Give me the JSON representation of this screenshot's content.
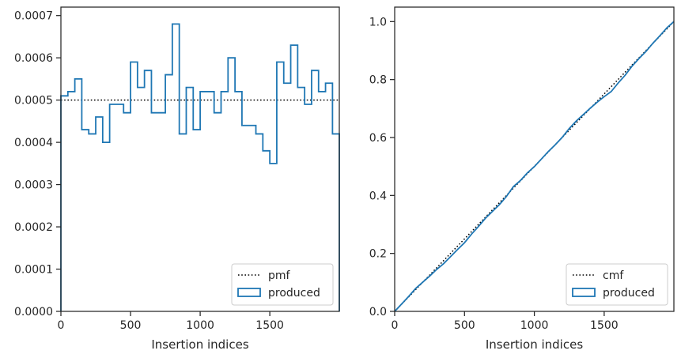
{
  "chart_data": [
    {
      "type": "step",
      "xlabel": "Insertion indices",
      "ylabel": "",
      "xlim": [
        0,
        1999
      ],
      "ylim": [
        0,
        0.00072
      ],
      "xticks": [
        0,
        500,
        1000,
        1500
      ],
      "xtick_labels": [
        "0",
        "500",
        "1000",
        "1500"
      ],
      "yticks": [
        0,
        0.0001,
        0.0002,
        0.0003,
        0.0004,
        0.0005,
        0.0006,
        0.0007
      ],
      "ytick_labels": [
        "0.0000",
        "0.0001",
        "0.0002",
        "0.0003",
        "0.0004",
        "0.0005",
        "0.0006",
        "0.0007"
      ],
      "legend_position": "bottom-right",
      "series": [
        {
          "name": "pmf",
          "style": "dotted",
          "color": "#000000",
          "x": [
            0,
            1999
          ],
          "y": [
            0.0005,
            0.0005
          ]
        },
        {
          "name": "produced",
          "style": "step",
          "color": "#1f77b4",
          "bin_width": 50,
          "x_start": 0,
          "values": [
            0.00051,
            0.00052,
            0.00055,
            0.00043,
            0.00042,
            0.00046,
            0.0004,
            0.00049,
            0.00049,
            0.00047,
            0.00059,
            0.00053,
            0.00057,
            0.00047,
            0.00047,
            0.00056,
            0.00068,
            0.00042,
            0.00053,
            0.00043,
            0.00052,
            0.00052,
            0.00047,
            0.00052,
            0.0006,
            0.00052,
            0.00044,
            0.00044,
            0.00042,
            0.00038,
            0.00035,
            0.00059,
            0.00054,
            0.00063,
            0.00053,
            0.00049,
            0.00057,
            0.00052,
            0.00054,
            0.00042
          ]
        }
      ],
      "legend": [
        {
          "label": "pmf",
          "marker": "dotted-line"
        },
        {
          "label": "produced",
          "marker": "rect"
        }
      ]
    },
    {
      "type": "line",
      "xlabel": "Insertion indices",
      "ylabel": "",
      "xlim": [
        0,
        1999
      ],
      "ylim": [
        0,
        1.05
      ],
      "xticks": [
        0,
        500,
        1000,
        1500
      ],
      "xtick_labels": [
        "0",
        "500",
        "1000",
        "1500"
      ],
      "yticks": [
        0,
        0.2,
        0.4,
        0.6,
        0.8,
        1.0
      ],
      "ytick_labels": [
        "0.0",
        "0.2",
        "0.4",
        "0.6",
        "0.8",
        "1.0"
      ],
      "legend_position": "bottom-right",
      "series": [
        {
          "name": "cmf",
          "style": "dotted",
          "color": "#000000",
          "x": [
            0,
            1999
          ],
          "y": [
            0,
            1.0
          ]
        },
        {
          "name": "produced",
          "style": "solid",
          "color": "#1f77b4",
          "x": [
            0,
            50,
            100,
            150,
            200,
            250,
            300,
            350,
            400,
            450,
            500,
            550,
            600,
            650,
            700,
            750,
            800,
            850,
            900,
            950,
            1000,
            1050,
            1100,
            1150,
            1200,
            1250,
            1300,
            1350,
            1400,
            1450,
            1500,
            1550,
            1600,
            1650,
            1700,
            1750,
            1800,
            1850,
            1900,
            1950,
            1999
          ],
          "y": [
            0,
            0.0255,
            0.0515,
            0.079,
            0.1005,
            0.1215,
            0.1445,
            0.1645,
            0.189,
            0.2135,
            0.237,
            0.2665,
            0.293,
            0.3215,
            0.345,
            0.3685,
            0.3965,
            0.4305,
            0.4515,
            0.478,
            0.4995,
            0.5255,
            0.5515,
            0.575,
            0.601,
            0.631,
            0.657,
            0.679,
            0.701,
            0.722,
            0.741,
            0.7585,
            0.788,
            0.815,
            0.8465,
            0.873,
            0.8975,
            0.926,
            0.952,
            0.979,
            1.0
          ]
        }
      ],
      "legend": [
        {
          "label": "cmf",
          "marker": "dotted-line"
        },
        {
          "label": "produced",
          "marker": "rect"
        }
      ]
    }
  ]
}
